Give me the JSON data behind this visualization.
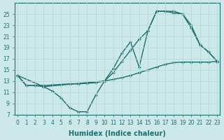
{
  "bg_color": "#cce8e8",
  "line_color": "#1a7070",
  "grid_color": "#b8d8d8",
  "xlabel": "Humidex (Indice chaleur)",
  "ylim": [
    7,
    27
  ],
  "xlim": [
    -0.3,
    23.3
  ],
  "yticks": [
    7,
    9,
    11,
    13,
    15,
    17,
    19,
    21,
    23,
    25
  ],
  "xticks": [
    0,
    1,
    2,
    3,
    4,
    5,
    6,
    7,
    8,
    9,
    10,
    11,
    12,
    13,
    14,
    15,
    16,
    17,
    18,
    19,
    20,
    21,
    22,
    23
  ],
  "line1_x": [
    0,
    1,
    2,
    3,
    4,
    5,
    6,
    7,
    8,
    9,
    10,
    11,
    12,
    13,
    14,
    15,
    16,
    17,
    18,
    19,
    20,
    21,
    22,
    23
  ],
  "line1_y": [
    14.0,
    12.2,
    12.2,
    12.2,
    12.3,
    12.4,
    12.5,
    12.5,
    12.6,
    12.7,
    13.0,
    13.3,
    13.6,
    14.0,
    14.5,
    15.0,
    15.5,
    16.0,
    16.3,
    16.4,
    16.4,
    16.4,
    16.4,
    16.5
  ],
  "line2_x": [
    0,
    1,
    2,
    3,
    4,
    5,
    6,
    7,
    8,
    9,
    10,
    11,
    12,
    13,
    14,
    15,
    16,
    17,
    18,
    19,
    20,
    21,
    22,
    23
  ],
  "line2_y": [
    14.0,
    12.2,
    12.2,
    12.0,
    11.2,
    10.0,
    8.2,
    7.5,
    7.5,
    10.5,
    13.0,
    15.2,
    18.0,
    20.0,
    15.5,
    22.0,
    25.5,
    25.5,
    25.5,
    25.0,
    23.0,
    19.5,
    18.2,
    16.5
  ],
  "line3_x": [
    0,
    3,
    10,
    11,
    12,
    13,
    14,
    15,
    16,
    17,
    18,
    19,
    20,
    21,
    22,
    23
  ],
  "line3_y": [
    14.0,
    12.0,
    13.0,
    14.5,
    16.5,
    18.5,
    20.5,
    22.0,
    25.5,
    25.5,
    25.2,
    25.0,
    22.5,
    19.5,
    18.2,
    16.5
  ],
  "marker": "+",
  "markersize": 3.5,
  "markeredgewidth": 1.0,
  "linewidth": 1.0,
  "tick_fontsize": 5.5,
  "xlabel_fontsize": 7,
  "fig_width": 3.2,
  "fig_height": 2.0,
  "dpi": 100
}
